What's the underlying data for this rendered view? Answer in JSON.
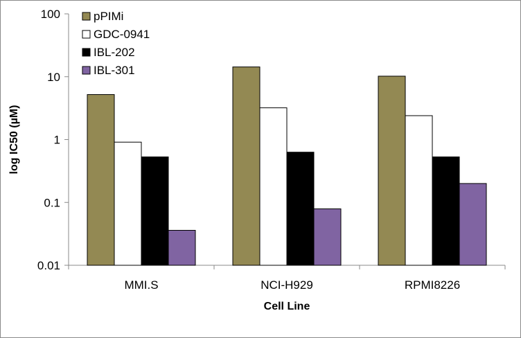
{
  "chart_data": {
    "type": "bar",
    "title": "",
    "xlabel": "Cell Line",
    "ylabel": "log IC50 (µM)",
    "yscale": "log",
    "ylim": [
      0.01,
      100
    ],
    "yticks": [
      "100",
      "10",
      "1",
      "0.1",
      "0.01"
    ],
    "grid": false,
    "legend_position": "top-left",
    "categories": [
      "MMI.S",
      "NCI-H929",
      "RPMI8226"
    ],
    "series": [
      {
        "name": "pPIMi",
        "color": "#938953",
        "values": [
          5.2,
          14.3,
          10.2
        ]
      },
      {
        "name": "GDC-0941",
        "color": "#FFFFFF",
        "values": [
          0.91,
          3.2,
          2.4
        ]
      },
      {
        "name": "IBL-202",
        "color": "#000000",
        "values": [
          0.53,
          0.63,
          0.53
        ]
      },
      {
        "name": "IBL-301",
        "color": "#8064A2",
        "values": [
          0.036,
          0.079,
          0.2
        ]
      }
    ]
  }
}
